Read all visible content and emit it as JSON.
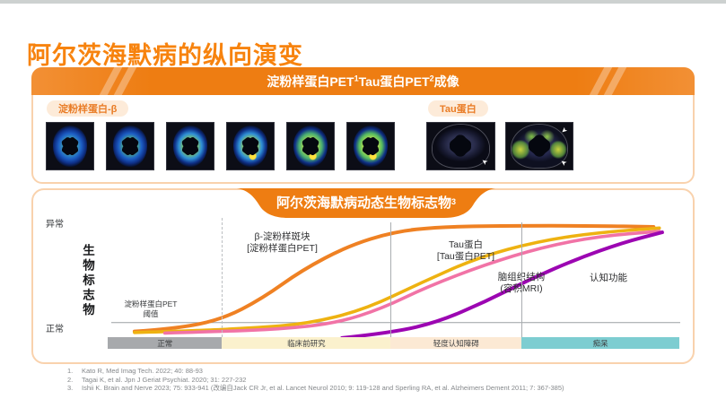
{
  "slide": {
    "title": "阿尔茨海默病的纵向演变",
    "references": [
      {
        "num": "1.",
        "text": "Kato R, Med Imag Tech. 2022; 40: 88-93"
      },
      {
        "num": "2.",
        "text": "Tagai K, et al. Jpn J Geriat Psychiat. 2020; 31: 227-232"
      },
      {
        "num": "3.",
        "text": "Ishii K. Brain and Nerve 2023; 75: 933-941  (改编自Jack CR Jr, et al. Lancet Neurol 2010; 9: 119-128 and Sperling RA, et al. Alzheimers Dement 2011; 7: 367-385)"
      }
    ],
    "colors": {
      "accent_orange": "#ee7d12",
      "title_orange": "#f7830e",
      "panel_border": "#f9d2ad"
    }
  },
  "imaging_panel": {
    "header": {
      "part1": "淀粉样蛋白PET",
      "sup1": "1",
      "part2": "Tau蛋白PET",
      "sup2": "2",
      "part3": "成像"
    },
    "amyloid_label": "淀粉样蛋白-β",
    "tau_label": "Tau蛋白",
    "scan_groups": [
      {
        "name": "amyloid-pet-scans",
        "count": 6
      },
      {
        "name": "tau-pet-scans",
        "count": 2
      }
    ]
  },
  "biomarker_panel": {
    "header": {
      "text": "阿尔茨海默病动态生物标志物",
      "sup": "3"
    }
  },
  "chart_data": {
    "type": "line",
    "title": "阿尔茨海默病动态生物标志物",
    "ylabel": "生物标志物",
    "y_top_label": "异常",
    "y_bottom_label": "正常",
    "ylim": [
      0,
      1
    ],
    "grid": false,
    "legend_position": "inline-annotations",
    "threshold": {
      "label_line1": "淀粉样蛋白PET",
      "label_line2": "阈值",
      "y": 0.1
    },
    "x_stages": [
      {
        "label": "正常",
        "color": "#a7a9ac",
        "from": 0,
        "to": 0.2
      },
      {
        "label": "临床前研究",
        "color": "#fbf1cd",
        "from": 0.2,
        "to": 0.495
      },
      {
        "label": "轻度认知障碍",
        "color": "#fce9d4",
        "from": 0.495,
        "to": 0.724
      },
      {
        "label": "痴呆",
        "color": "#7dcdd1",
        "from": 0.724,
        "to": 1
      }
    ],
    "separators": [
      {
        "frac": 0.2,
        "line": "dashed"
      },
      {
        "frac": 0.495,
        "line": "solid"
      },
      {
        "frac": 0.724,
        "line": "solid"
      }
    ],
    "series": [
      {
        "name": "β-淀粉样斑块 [淀粉样蛋白PET]",
        "label_line1": "β-淀粉样斑块",
        "label_line2": "[淀粉样蛋白PET]",
        "color": "#ef8123",
        "width": 4,
        "points": [
          [
            0.047,
            0.02
          ],
          [
            0.12,
            0.045
          ],
          [
            0.2,
            0.13
          ],
          [
            0.27,
            0.32
          ],
          [
            0.34,
            0.58
          ],
          [
            0.42,
            0.8
          ],
          [
            0.5,
            0.93
          ],
          [
            0.58,
            0.975
          ],
          [
            0.7,
            0.985
          ],
          [
            0.85,
            0.985
          ],
          [
            0.955,
            0.975
          ]
        ]
      },
      {
        "name": "Tau蛋白 [Tau蛋白PET]",
        "label_line1": "Tau蛋白",
        "label_line2": "[Tau蛋白PET]",
        "color": "#eeb211",
        "width": 3.6,
        "points": [
          [
            0.047,
            0.01
          ],
          [
            0.15,
            0.025
          ],
          [
            0.25,
            0.05
          ],
          [
            0.35,
            0.09
          ],
          [
            0.45,
            0.22
          ],
          [
            0.55,
            0.47
          ],
          [
            0.65,
            0.7
          ],
          [
            0.75,
            0.84
          ],
          [
            0.85,
            0.92
          ],
          [
            0.965,
            0.965
          ]
        ]
      },
      {
        "name": "脑组织结构 (容积MRI)",
        "label_line1": "脑组织结构",
        "label_line2": "(容积MRI)",
        "color": "#f173a6",
        "width": 3.6,
        "points": [
          [
            0.1,
            0.005
          ],
          [
            0.2,
            0.02
          ],
          [
            0.3,
            0.04
          ],
          [
            0.4,
            0.095
          ],
          [
            0.48,
            0.23
          ],
          [
            0.56,
            0.43
          ],
          [
            0.66,
            0.63
          ],
          [
            0.76,
            0.79
          ],
          [
            0.86,
            0.89
          ],
          [
            0.965,
            0.935
          ]
        ]
      },
      {
        "name": "认知功能",
        "label_line1": "认知功能",
        "label_line2": "",
        "color": "#9c06b2",
        "width": 4,
        "points": [
          [
            0.41,
            -0.04
          ],
          [
            0.5,
            0.01
          ],
          [
            0.58,
            0.11
          ],
          [
            0.66,
            0.29
          ],
          [
            0.74,
            0.5
          ],
          [
            0.82,
            0.68
          ],
          [
            0.9,
            0.83
          ],
          [
            0.97,
            0.925
          ]
        ]
      }
    ]
  }
}
